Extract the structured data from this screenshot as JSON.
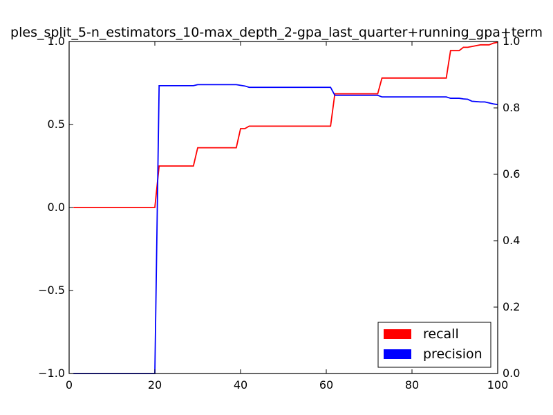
{
  "chart_data": {
    "type": "line",
    "title": "ples_split_5-n_estimators_10-max_depth_2-gpa_last_quarter+running_gpa+term",
    "xlim": [
      0,
      100
    ],
    "ylim_left": [
      -1.0,
      1.0
    ],
    "ylim_right": [
      0.0,
      1.0
    ],
    "x_ticks": [
      "0",
      "20",
      "40",
      "60",
      "80",
      "100"
    ],
    "y_left_ticks": [
      "−1.0",
      "−0.5",
      "0.0",
      "0.5",
      "1.0"
    ],
    "y_right_ticks": [
      "0.0",
      "0.2",
      "0.4",
      "0.6",
      "0.8",
      "1.0"
    ],
    "grid": false,
    "legend_position": "lower-right",
    "series": [
      {
        "name": "recall",
        "axis": "left",
        "color": "#ff0000",
        "points": [
          [
            1,
            0.0
          ],
          [
            20,
            0.0
          ],
          [
            21,
            0.25
          ],
          [
            29,
            0.25
          ],
          [
            30,
            0.36
          ],
          [
            39,
            0.36
          ],
          [
            40,
            0.475
          ],
          [
            41,
            0.475
          ],
          [
            42,
            0.49
          ],
          [
            61,
            0.49
          ],
          [
            62,
            0.685
          ],
          [
            72,
            0.685
          ],
          [
            73,
            0.78
          ],
          [
            88,
            0.78
          ],
          [
            89,
            0.945
          ],
          [
            91,
            0.945
          ],
          [
            92,
            0.965
          ],
          [
            93,
            0.965
          ],
          [
            95,
            0.975
          ],
          [
            96,
            0.98
          ],
          [
            98,
            0.98
          ],
          [
            99,
            0.99
          ],
          [
            100,
            0.995
          ]
        ]
      },
      {
        "name": "precision",
        "axis": "right",
        "color": "#0000ff",
        "points": [
          [
            1,
            0.0
          ],
          [
            20,
            0.0
          ],
          [
            21,
            0.867
          ],
          [
            29,
            0.867
          ],
          [
            30,
            0.87
          ],
          [
            39,
            0.87
          ],
          [
            40,
            0.868
          ],
          [
            41,
            0.866
          ],
          [
            42,
            0.862
          ],
          [
            61,
            0.862
          ],
          [
            62,
            0.838
          ],
          [
            72,
            0.838
          ],
          [
            73,
            0.833
          ],
          [
            88,
            0.833
          ],
          [
            89,
            0.829
          ],
          [
            91,
            0.829
          ],
          [
            92,
            0.827
          ],
          [
            93,
            0.826
          ],
          [
            94,
            0.82
          ],
          [
            96,
            0.818
          ],
          [
            97,
            0.818
          ],
          [
            99,
            0.812
          ],
          [
            100,
            0.81
          ]
        ]
      }
    ]
  }
}
